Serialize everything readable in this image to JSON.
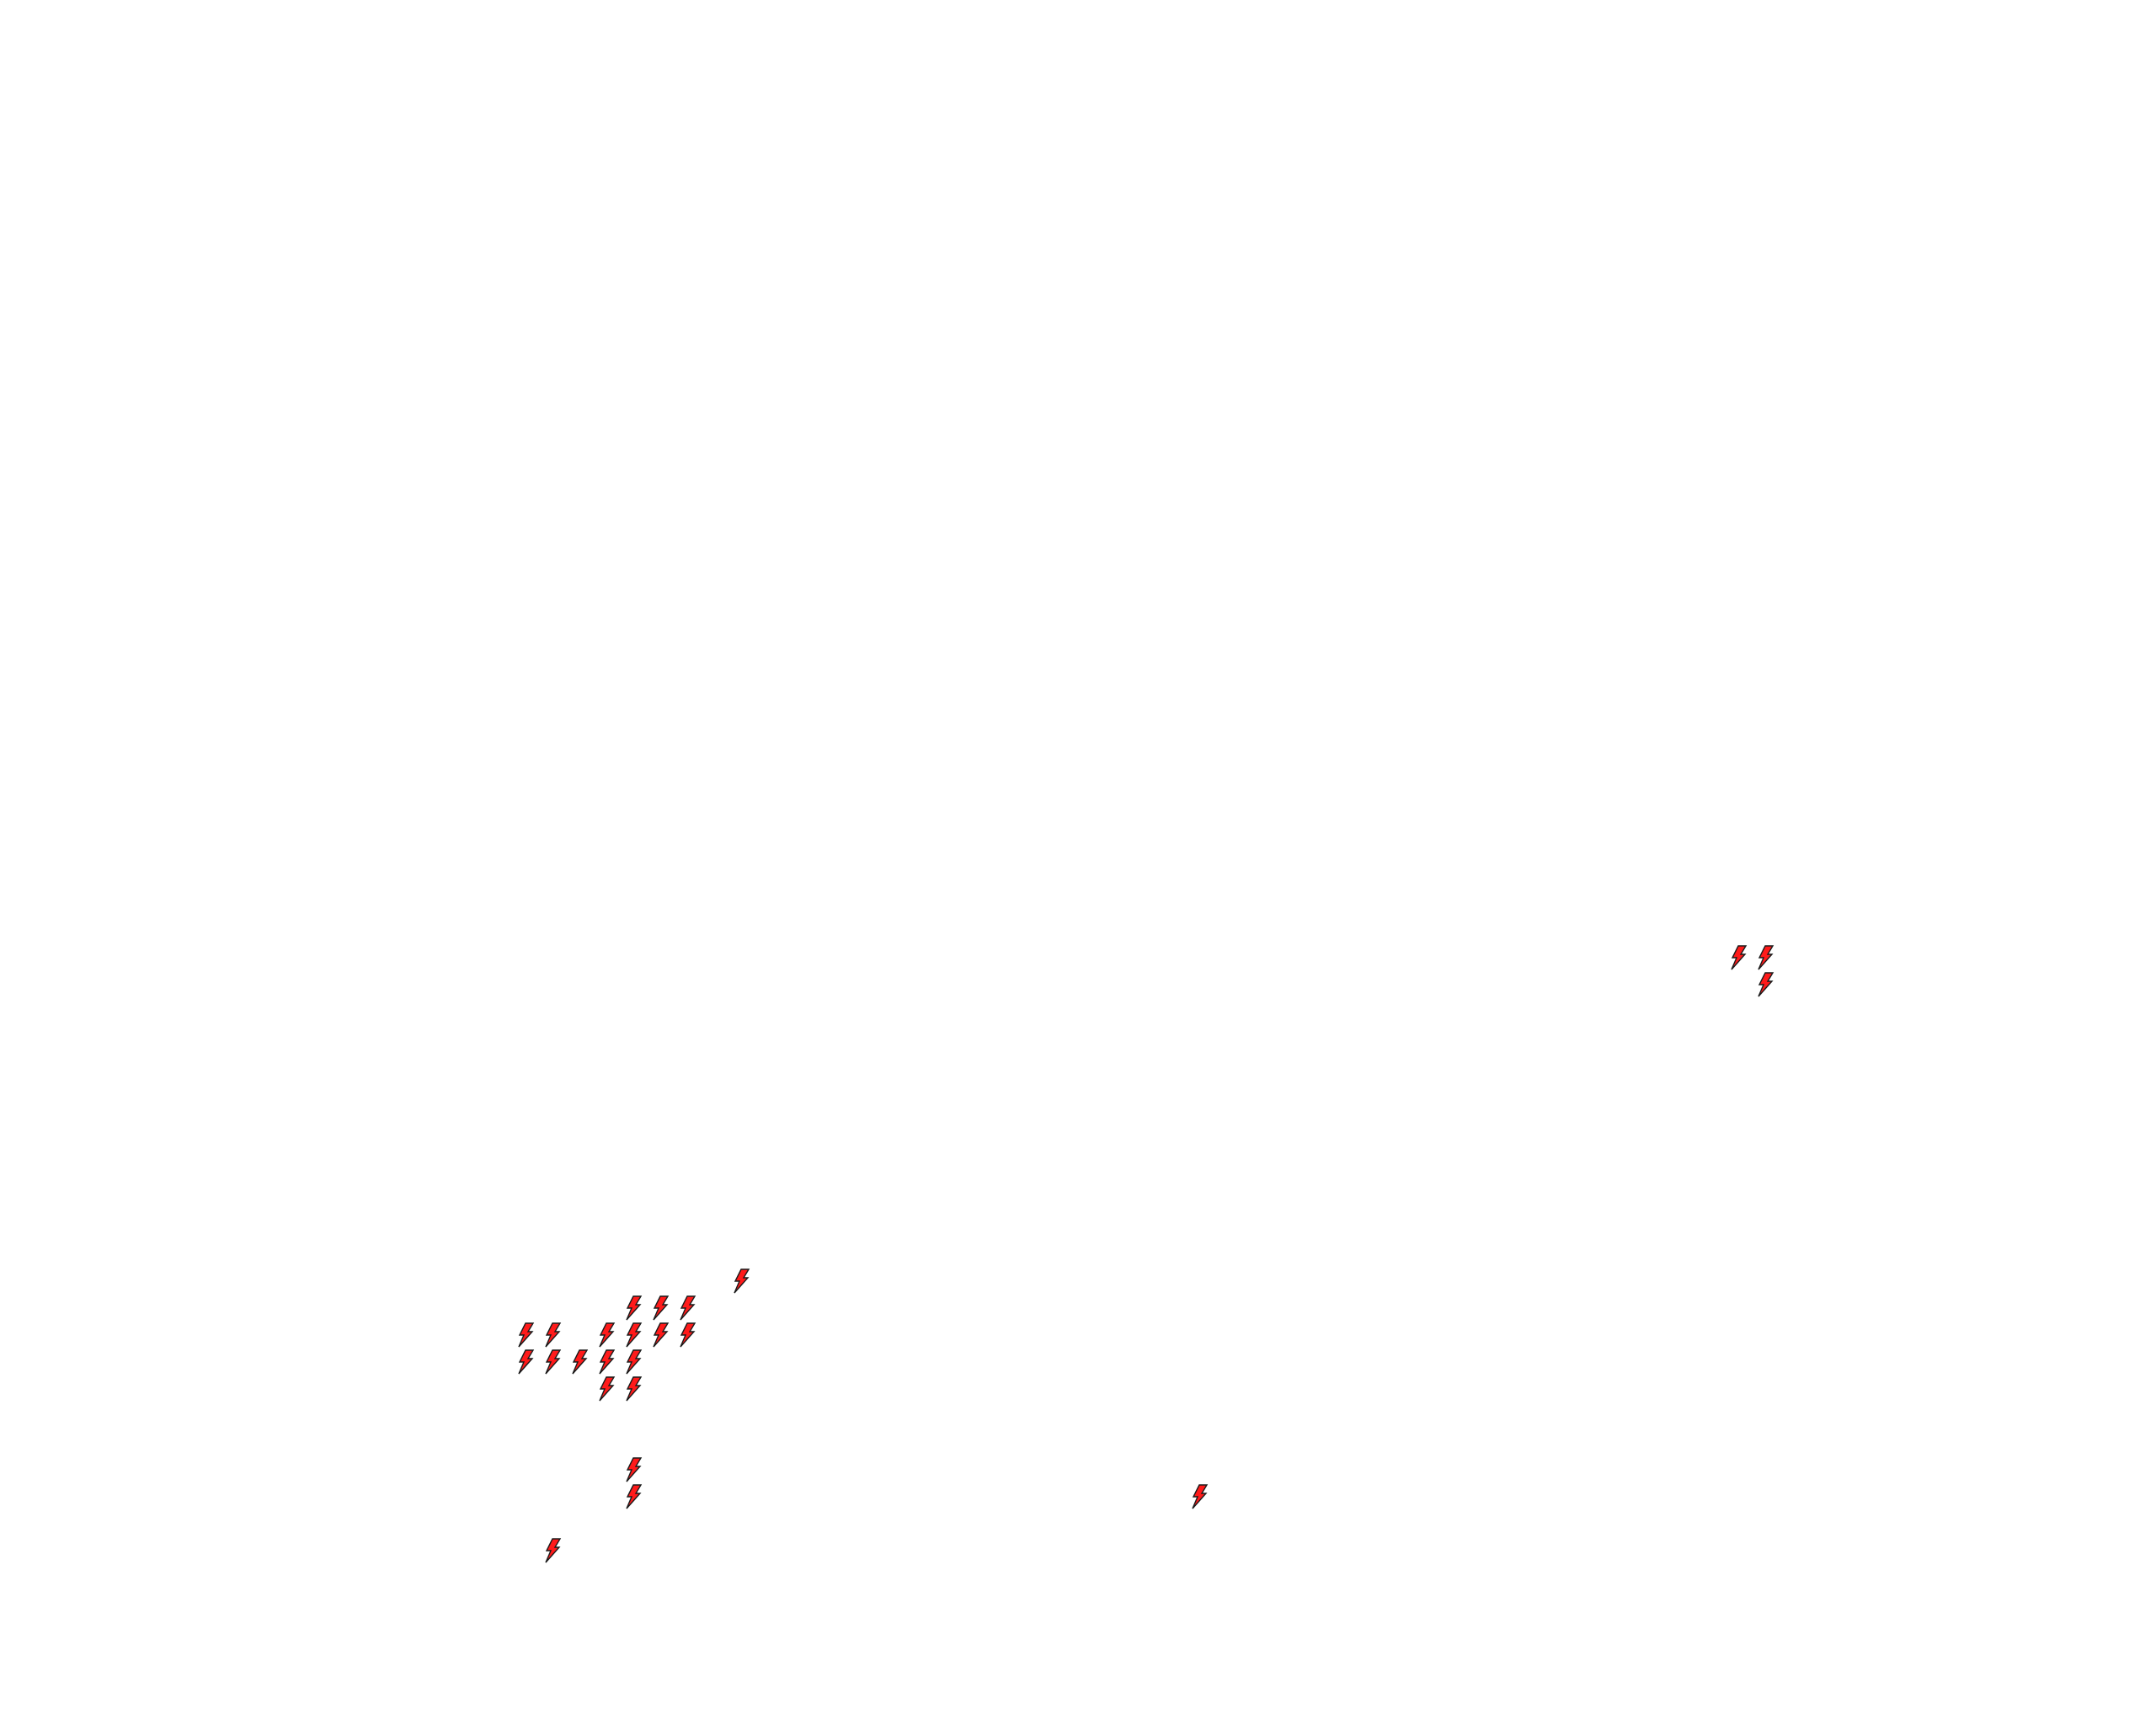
{
  "map": {
    "marker_icon": "lightning-bolt-icon",
    "marker_fill": "#ff1a1a",
    "marker_stroke": "#1a1a1a",
    "background": "#ffffff",
    "marker_count": 25
  }
}
